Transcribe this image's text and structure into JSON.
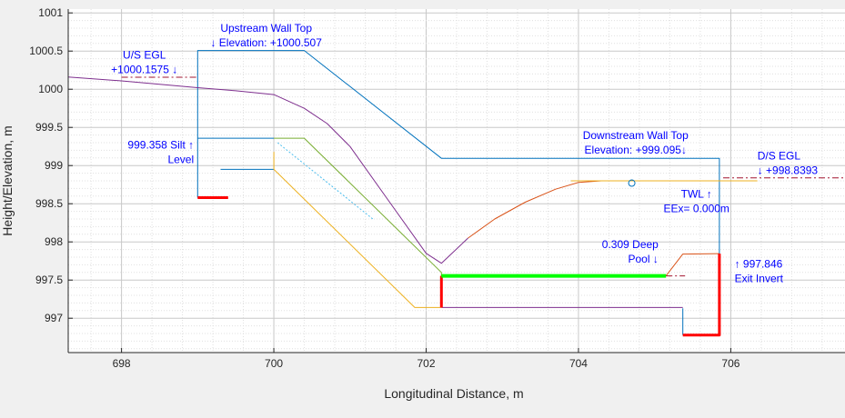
{
  "chart_data": {
    "type": "line",
    "xlabel": "Longitudinal Distance, m",
    "ylabel": "Height/Elevation, m",
    "xlim": [
      697.3,
      707.5
    ],
    "ylim": [
      996.55,
      1001.05
    ],
    "xticks": [
      698,
      700,
      702,
      704,
      706
    ],
    "yticks": [
      997,
      997.5,
      998,
      998.5,
      999,
      999.5,
      1000,
      1000.5,
      1001
    ],
    "grid": "major and minor, dotted",
    "series": [
      {
        "color": "#0072bd",
        "dash": "",
        "width": 1,
        "points": [
          [
            699,
            998.58
          ],
          [
            699,
            1000.507
          ],
          [
            700.4,
            1000.507
          ],
          [
            702.2,
            999.095
          ],
          [
            705.85,
            999.095
          ],
          [
            705.85,
            997.846
          ]
        ]
      },
      {
        "color": "#0072bd",
        "dash": "",
        "width": 1,
        "points": [
          [
            699,
            999.358
          ],
          [
            700,
            999.358
          ]
        ]
      },
      {
        "color": "#0072bd",
        "dash": "",
        "width": 1,
        "points": [
          [
            699.3,
            998.95
          ],
          [
            700,
            998.95
          ]
        ]
      },
      {
        "color": "#0072bd",
        "dash": "",
        "width": 1,
        "points": [
          [
            705.37,
            997.13
          ],
          [
            705.37,
            996.78
          ]
        ]
      },
      {
        "color": "#7e2f8e",
        "dash": "",
        "width": 1,
        "points": [
          [
            697.3,
            1000.16
          ],
          [
            698,
            1000.11
          ],
          [
            699,
            1000.02
          ],
          [
            699.5,
            999.98
          ],
          [
            700,
            999.93
          ],
          [
            700.4,
            999.75
          ],
          [
            700.7,
            999.55
          ],
          [
            701,
            999.25
          ],
          [
            701.5,
            998.55
          ],
          [
            702,
            997.85
          ],
          [
            702.2,
            997.72
          ],
          [
            702.55,
            998.05
          ]
        ]
      },
      {
        "color": "#7e2f8e",
        "dash": "",
        "width": 1,
        "points": [
          [
            702.2,
            997.14
          ],
          [
            705.37,
            997.14
          ]
        ]
      },
      {
        "color": "#d95319",
        "dash": "",
        "width": 1,
        "points": [
          [
            702.55,
            998.05
          ],
          [
            702.9,
            998.3
          ],
          [
            703.3,
            998.52
          ],
          [
            703.7,
            998.69
          ],
          [
            704,
            998.78
          ],
          [
            704.3,
            998.8
          ]
        ]
      },
      {
        "color": "#d95319",
        "dash": "",
        "width": 1,
        "points": [
          [
            705.15,
            997.555
          ],
          [
            705.37,
            997.84
          ],
          [
            705.85,
            997.846
          ]
        ]
      },
      {
        "color": "#edb120",
        "dash": "",
        "width": 1,
        "points": [
          [
            700,
            999.18
          ],
          [
            700,
            998.95
          ],
          [
            701.85,
            997.14
          ],
          [
            702.2,
            997.14
          ]
        ]
      },
      {
        "color": "#edb120",
        "dash": "",
        "width": 1,
        "points": [
          [
            703.9,
            998.8
          ],
          [
            706.35,
            998.8
          ]
        ]
      },
      {
        "color": "#77ac30",
        "dash": "",
        "width": 1,
        "points": [
          [
            700,
            999.358
          ],
          [
            700.4,
            999.358
          ],
          [
            702.2,
            997.6
          ],
          [
            702.2,
            997.55
          ]
        ]
      },
      {
        "color": "#4dbeee",
        "dash": "2,2",
        "width": 1,
        "points": [
          [
            700.05,
            999.3
          ],
          [
            701.3,
            998.3
          ]
        ]
      },
      {
        "color": "#ff0000",
        "dash": "",
        "width": 3,
        "points": [
          [
            699,
            998.58
          ],
          [
            699.4,
            998.58
          ]
        ]
      },
      {
        "color": "#ff0000",
        "dash": "",
        "width": 3,
        "points": [
          [
            702.2,
            997.14
          ],
          [
            702.2,
            997.555
          ]
        ]
      },
      {
        "color": "#ff0000",
        "dash": "",
        "width": 3,
        "points": [
          [
            705.37,
            996.78
          ],
          [
            705.85,
            996.78
          ],
          [
            705.85,
            997.846
          ]
        ]
      },
      {
        "color": "#00ff00",
        "dash": "",
        "width": 4,
        "points": [
          [
            702.2,
            997.555
          ],
          [
            705.15,
            997.555
          ]
        ]
      },
      {
        "color": "#a2142f",
        "dash": "7,3,2,3",
        "width": 1,
        "points": [
          [
            698,
            1000.1575
          ],
          [
            699,
            1000.1575
          ]
        ]
      },
      {
        "color": "#a2142f",
        "dash": "7,3,2,3",
        "width": 1,
        "points": [
          [
            705.9,
            998.8393
          ],
          [
            707.5,
            998.8393
          ]
        ]
      },
      {
        "color": "#a2142f",
        "dash": "7,3,2,3",
        "width": 1,
        "points": [
          [
            705.15,
            997.555
          ],
          [
            705.4,
            997.555
          ]
        ]
      }
    ],
    "markers": [
      {
        "shape": "circle",
        "color": "#0072bd",
        "x": 704.7,
        "y": 998.77
      }
    ],
    "annotations": [
      {
        "lines": [
          "Upstream Wall Top",
          "↓ Elevation: +1000.507"
        ],
        "x": 699.9,
        "y": 1000.755,
        "anchor": "middle"
      },
      {
        "lines": [
          "U/S EGL",
          "+1000.1575  ↓"
        ],
        "x": 698.3,
        "y": 1000.4,
        "anchor": "middle"
      },
      {
        "lines": [
          "999.358 Silt  ↑",
          "Level"
        ],
        "x": 698.95,
        "y": 999.22,
        "anchor": "end"
      },
      {
        "lines": [
          "Downstream Wall Top",
          "Elevation: +999.095↓"
        ],
        "x": 704.75,
        "y": 999.345,
        "anchor": "middle"
      },
      {
        "lines": [
          "D/S EGL",
          "↓  +998.8393"
        ],
        "x": 706.35,
        "y": 999.08,
        "anchor": "start"
      },
      {
        "lines": [
          "TWL ↑",
          "EEx= 0.000m"
        ],
        "x": 705.55,
        "y": 998.58,
        "anchor": "middle"
      },
      {
        "lines": [
          "0.309 Deep",
          "Pool ↓"
        ],
        "x": 705.05,
        "y": 997.92,
        "anchor": "end"
      },
      {
        "lines": [
          "↑ 997.846",
          "Exit Invert"
        ],
        "x": 706.05,
        "y": 997.665,
        "anchor": "start"
      }
    ]
  }
}
